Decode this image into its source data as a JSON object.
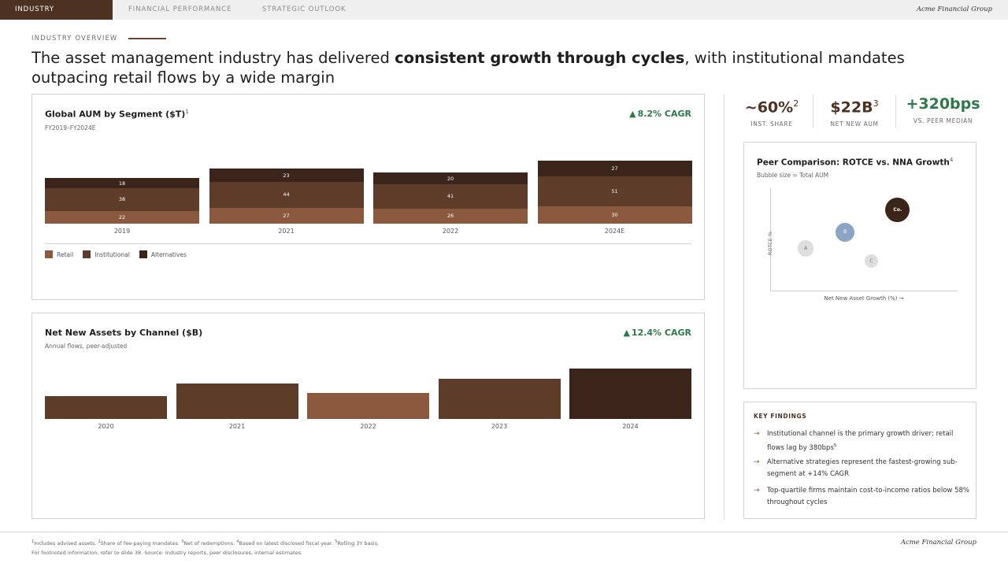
{
  "nav": {
    "tabs": [
      {
        "label": "INDUSTRY OVERVIEW",
        "active": true
      },
      {
        "label": "FINANCIAL PERFORMANCE",
        "active": false
      },
      {
        "label": "STRATEGIC OUTLOOK",
        "active": false
      }
    ],
    "brand": "Acme Financial Group"
  },
  "section_label": "INDUSTRY OVERVIEW",
  "headline": {
    "part1": "The asset management industry has delivered ",
    "bold": "consistent growth through cycles",
    "part2": ", with institutional mandates outpacing retail flows by a wide margin"
  },
  "colors": {
    "retail": "#8b5a3e",
    "institutional": "#5e3c2a",
    "alternatives": "#3b2419",
    "accent_green": "#2d7a48",
    "brand_brown": "#4d3221"
  },
  "aum_card": {
    "title": "Global AUM by Segment ($T)",
    "title_sup": "1",
    "subtitle": "FY2019–FY2024E",
    "cagr": "8.2% CAGR",
    "cagr_icon": "triangle-up-icon"
  },
  "nna_card": {
    "title": "Net New Assets by Channel ($B)",
    "subtitle": "Annual flows, peer-adjusted",
    "cagr": "12.4% CAGR",
    "cagr_icon": "triangle-up-icon"
  },
  "chart_data": [
    {
      "type": "bar",
      "stacked": true,
      "title": "Global AUM by Segment ($T)",
      "categories": [
        "2019",
        "2021",
        "2022",
        "2024E"
      ],
      "series": [
        {
          "name": "Retail",
          "values": [
            22,
            27,
            26,
            30
          ]
        },
        {
          "name": "Institutional",
          "values": [
            38,
            44,
            41,
            51
          ]
        },
        {
          "name": "Alternatives",
          "values": [
            18,
            23,
            20,
            27
          ]
        }
      ],
      "legend": "bottom-left"
    },
    {
      "type": "bar",
      "title": "Net New Assets by Channel ($B)",
      "categories": [
        "2020",
        "2021",
        "2022",
        "2023",
        "2024"
      ],
      "values": [
        29,
        45,
        33,
        51,
        64
      ]
    },
    {
      "type": "scatter",
      "title": "Peer Comparison: ROTCE vs. NNA Growth",
      "xlabel": "Net New Asset Growth (%) →",
      "ylabel": "ROTCE %",
      "points": [
        {
          "label": "A",
          "x": 19,
          "y": 41,
          "size": 3
        },
        {
          "label": "B",
          "x": 40,
          "y": 57,
          "size": 4
        },
        {
          "label": "C",
          "x": 54,
          "y": 29,
          "size": 2
        },
        {
          "label": "Co.",
          "x": 68,
          "y": 79,
          "size": 6
        }
      ]
    }
  ],
  "kpis": [
    {
      "value": "~60%",
      "sup": "2",
      "label": "INST. SHARE",
      "color": "#4d3221"
    },
    {
      "value": "$22B",
      "sup": "3",
      "label": "NET NEW AUM",
      "color": "#4d3221"
    },
    {
      "value": "+320bps",
      "sup": "",
      "label": "VS. PEER MEDIAN",
      "color": "#2d7a48"
    }
  ],
  "peer_card": {
    "title": "Peer Comparison: ROTCE vs. NNA Growth",
    "title_sup": "4",
    "subtitle": "Bubble size = Total AUM"
  },
  "findings": {
    "title": "KEY FINDINGS",
    "arrow_icon": "arrow-right-icon",
    "items": [
      {
        "text": "Institutional channel is the primary growth driver; retail flows lag by 380bps",
        "sup": "5"
      },
      {
        "text": "Alternative strategies represent the fastest-growing sub-segment at +14% CAGR",
        "sup": ""
      },
      {
        "text": "Top-quartile firms maintain cost-to-income ratios below 58% throughout cycles",
        "sup": ""
      }
    ]
  },
  "footer": {
    "notes": [
      {
        "sup": "1",
        "text": "Includes advised assets. "
      },
      {
        "sup": "2",
        "text": "Share of fee-paying mandates. "
      },
      {
        "sup": "3",
        "text": "Net of redemptions. "
      },
      {
        "sup": "4",
        "text": "Based on latest disclosed fiscal year. "
      },
      {
        "sup": "5",
        "text": "Rolling 3Y basis."
      }
    ],
    "line2": "For footnoted information, refer to slide 38. Source: Industry reports, peer disclosures, internal estimates.",
    "brand": "Acme Financial Group"
  }
}
